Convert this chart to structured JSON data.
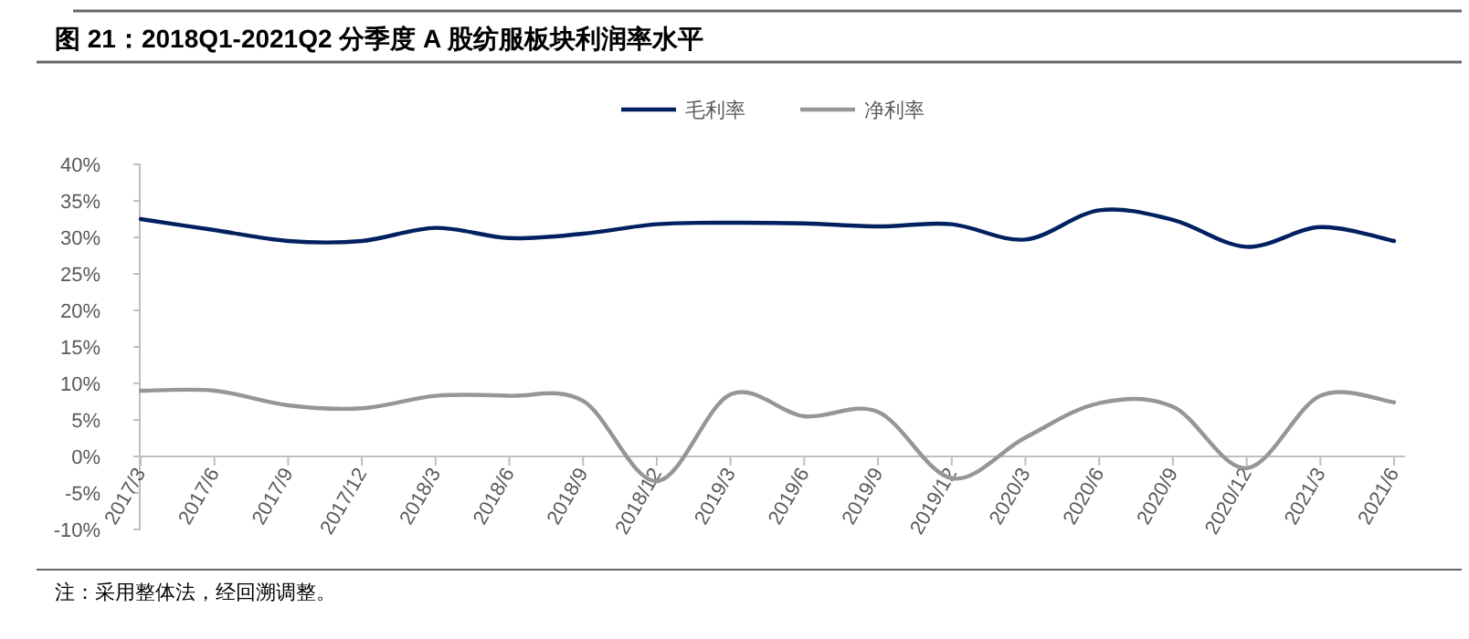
{
  "chart_data": {
    "type": "line",
    "title": "图 21：2018Q1-2021Q2 分季度 A 股纺服板块利润率水平",
    "categories": [
      "2017/3",
      "2017/6",
      "2017/9",
      "2017/12",
      "2018/3",
      "2018/6",
      "2018/9",
      "2018/12",
      "2019/3",
      "2019/6",
      "2019/9",
      "2019/12",
      "2020/3",
      "2020/6",
      "2020/9",
      "2020/12",
      "2021/3",
      "2021/6"
    ],
    "series": [
      {
        "name": "毛利率",
        "color": "#002060",
        "values": [
          32.5,
          31.0,
          29.5,
          29.5,
          31.3,
          29.9,
          30.5,
          31.8,
          32.0,
          31.9,
          31.5,
          31.8,
          29.7,
          33.7,
          32.4,
          28.7,
          31.4,
          29.5
        ]
      },
      {
        "name": "净利率",
        "color": "#969696",
        "values": [
          9.0,
          9.0,
          7.0,
          6.6,
          8.3,
          8.3,
          7.6,
          -3.4,
          8.5,
          5.5,
          6.1,
          -3.0,
          2.6,
          7.3,
          6.8,
          -1.6,
          8.3,
          7.4
        ]
      }
    ],
    "ylim": [
      -10,
      40
    ],
    "yticks": [
      {
        "value": -10,
        "label": "-10%"
      },
      {
        "value": -5,
        "label": "-5%"
      },
      {
        "value": 0,
        "label": "0%"
      },
      {
        "value": 5,
        "label": "5%"
      },
      {
        "value": 10,
        "label": "10%"
      },
      {
        "value": 15,
        "label": "15%"
      },
      {
        "value": 20,
        "label": "20%"
      },
      {
        "value": 25,
        "label": "25%"
      },
      {
        "value": 30,
        "label": "30%"
      },
      {
        "value": 35,
        "label": "35%"
      },
      {
        "value": 40,
        "label": "40%"
      }
    ],
    "legend": "top",
    "line_style": "solid",
    "annotations": [
      "注：采用整体法，经回溯调整。"
    ]
  }
}
